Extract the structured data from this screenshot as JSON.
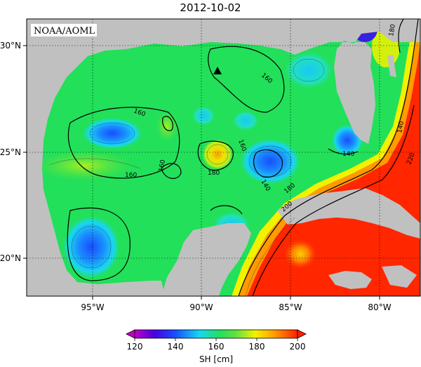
{
  "title": "2012-10-02",
  "credit": "NOAA/AOML",
  "x_ticks": [
    "95°W",
    "90°W",
    "85°W",
    "80°W"
  ],
  "y_ticks": [
    "30°N",
    "25°N",
    "20°N"
  ],
  "contour_labels": [
    "160",
    "160",
    "160",
    "160",
    "180",
    "160",
    "140",
    "140",
    "180",
    "200",
    "180",
    "140",
    "220"
  ],
  "colorbar": {
    "label": "SH [cm]",
    "min": 120,
    "max": 200,
    "ticks": [
      "120",
      "140",
      "160",
      "180",
      "200"
    ]
  },
  "colors": {
    "land": "#c0c0c0",
    "sea_base": "#22e05a",
    "deep_red": "#ff2600",
    "orange": "#ff9a00",
    "yellow": "#f2f200",
    "cyan": "#19d7f0",
    "blue": "#1464ff",
    "violet": "#6a00d8"
  }
}
